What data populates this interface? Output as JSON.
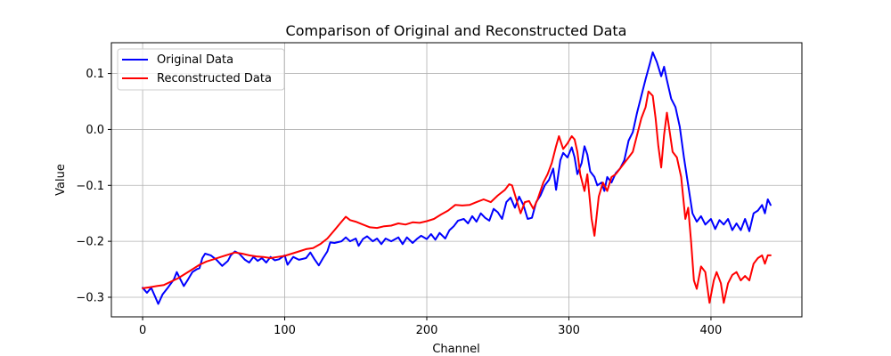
{
  "chart_data": {
    "type": "line",
    "title": "Comparison of Original and Reconstructed Data",
    "xlabel": "Channel",
    "ylabel": "Value",
    "xlim": [
      -22,
      464
    ],
    "ylim": [
      -0.335,
      0.155
    ],
    "xticks": [
      0,
      100,
      200,
      300,
      400
    ],
    "yticks": [
      -0.3,
      -0.2,
      -0.1,
      0.0,
      0.1
    ],
    "ytick_labels": [
      "−0.3",
      "−0.2",
      "−0.1",
      "0.0",
      "0.1"
    ],
    "grid": true,
    "legend_position": "top-left",
    "series": [
      {
        "name": "Original Data",
        "color": "#0000ff",
        "points": [
          [
            0,
            -0.283
          ],
          [
            3,
            -0.292
          ],
          [
            6,
            -0.283
          ],
          [
            9,
            -0.3
          ],
          [
            11,
            -0.312
          ],
          [
            14,
            -0.295
          ],
          [
            18,
            -0.282
          ],
          [
            22,
            -0.268
          ],
          [
            24,
            -0.255
          ],
          [
            26,
            -0.265
          ],
          [
            29,
            -0.28
          ],
          [
            32,
            -0.268
          ],
          [
            35,
            -0.255
          ],
          [
            38,
            -0.25
          ],
          [
            40,
            -0.248
          ],
          [
            42,
            -0.23
          ],
          [
            44,
            -0.222
          ],
          [
            48,
            -0.225
          ],
          [
            52,
            -0.233
          ],
          [
            56,
            -0.244
          ],
          [
            60,
            -0.235
          ],
          [
            62,
            -0.225
          ],
          [
            65,
            -0.218
          ],
          [
            68,
            -0.222
          ],
          [
            72,
            -0.233
          ],
          [
            75,
            -0.238
          ],
          [
            78,
            -0.228
          ],
          [
            81,
            -0.235
          ],
          [
            84,
            -0.23
          ],
          [
            87,
            -0.238
          ],
          [
            90,
            -0.228
          ],
          [
            93,
            -0.234
          ],
          [
            96,
            -0.232
          ],
          [
            100,
            -0.225
          ],
          [
            102,
            -0.242
          ],
          [
            106,
            -0.228
          ],
          [
            110,
            -0.233
          ],
          [
            115,
            -0.23
          ],
          [
            118,
            -0.22
          ],
          [
            121,
            -0.232
          ],
          [
            124,
            -0.243
          ],
          [
            127,
            -0.23
          ],
          [
            130,
            -0.218
          ],
          [
            132,
            -0.202
          ],
          [
            135,
            -0.203
          ],
          [
            140,
            -0.2
          ],
          [
            143,
            -0.193
          ],
          [
            146,
            -0.2
          ],
          [
            150,
            -0.195
          ],
          [
            152,
            -0.208
          ],
          [
            155,
            -0.196
          ],
          [
            158,
            -0.191
          ],
          [
            162,
            -0.2
          ],
          [
            165,
            -0.195
          ],
          [
            168,
            -0.205
          ],
          [
            171,
            -0.195
          ],
          [
            175,
            -0.2
          ],
          [
            180,
            -0.193
          ],
          [
            183,
            -0.205
          ],
          [
            186,
            -0.193
          ],
          [
            190,
            -0.203
          ],
          [
            193,
            -0.196
          ],
          [
            196,
            -0.19
          ],
          [
            200,
            -0.196
          ],
          [
            203,
            -0.187
          ],
          [
            206,
            -0.197
          ],
          [
            209,
            -0.185
          ],
          [
            213,
            -0.195
          ],
          [
            216,
            -0.18
          ],
          [
            219,
            -0.173
          ],
          [
            222,
            -0.163
          ],
          [
            226,
            -0.16
          ],
          [
            229,
            -0.168
          ],
          [
            232,
            -0.155
          ],
          [
            235,
            -0.165
          ],
          [
            238,
            -0.15
          ],
          [
            241,
            -0.158
          ],
          [
            244,
            -0.163
          ],
          [
            247,
            -0.142
          ],
          [
            250,
            -0.148
          ],
          [
            253,
            -0.16
          ],
          [
            256,
            -0.13
          ],
          [
            259,
            -0.122
          ],
          [
            262,
            -0.14
          ],
          [
            265,
            -0.12
          ],
          [
            268,
            -0.135
          ],
          [
            271,
            -0.16
          ],
          [
            274,
            -0.158
          ],
          [
            277,
            -0.13
          ],
          [
            280,
            -0.118
          ],
          [
            283,
            -0.1
          ],
          [
            286,
            -0.09
          ],
          [
            289,
            -0.07
          ],
          [
            291,
            -0.108
          ],
          [
            294,
            -0.055
          ],
          [
            296,
            -0.042
          ],
          [
            299,
            -0.05
          ],
          [
            302,
            -0.032
          ],
          [
            304,
            -0.05
          ],
          [
            306,
            -0.08
          ],
          [
            309,
            -0.06
          ],
          [
            311,
            -0.03
          ],
          [
            313,
            -0.045
          ],
          [
            315,
            -0.075
          ],
          [
            318,
            -0.085
          ],
          [
            320,
            -0.1
          ],
          [
            323,
            -0.095
          ],
          [
            325,
            -0.11
          ],
          [
            327,
            -0.085
          ],
          [
            330,
            -0.095
          ],
          [
            333,
            -0.078
          ],
          [
            336,
            -0.07
          ],
          [
            339,
            -0.055
          ],
          [
            342,
            -0.02
          ],
          [
            345,
            -0.005
          ],
          [
            348,
            0.03
          ],
          [
            351,
            0.06
          ],
          [
            354,
            0.09
          ],
          [
            357,
            0.118
          ],
          [
            359,
            0.138
          ],
          [
            362,
            0.12
          ],
          [
            365,
            0.095
          ],
          [
            367,
            0.112
          ],
          [
            369,
            0.088
          ],
          [
            372,
            0.055
          ],
          [
            375,
            0.04
          ],
          [
            378,
            0.005
          ],
          [
            381,
            -0.05
          ],
          [
            384,
            -0.1
          ],
          [
            387,
            -0.15
          ],
          [
            390,
            -0.165
          ],
          [
            393,
            -0.155
          ],
          [
            396,
            -0.17
          ],
          [
            400,
            -0.16
          ],
          [
            403,
            -0.178
          ],
          [
            406,
            -0.162
          ],
          [
            409,
            -0.17
          ],
          [
            412,
            -0.16
          ],
          [
            415,
            -0.18
          ],
          [
            418,
            -0.168
          ],
          [
            421,
            -0.18
          ],
          [
            424,
            -0.16
          ],
          [
            427,
            -0.182
          ],
          [
            430,
            -0.15
          ],
          [
            433,
            -0.145
          ],
          [
            436,
            -0.135
          ],
          [
            438,
            -0.15
          ],
          [
            440,
            -0.125
          ],
          [
            442,
            -0.135
          ]
        ]
      },
      {
        "name": "Reconstructed Data",
        "color": "#ff0000",
        "points": [
          [
            0,
            -0.284
          ],
          [
            5,
            -0.282
          ],
          [
            10,
            -0.28
          ],
          [
            15,
            -0.278
          ],
          [
            20,
            -0.272
          ],
          [
            25,
            -0.266
          ],
          [
            30,
            -0.258
          ],
          [
            35,
            -0.25
          ],
          [
            40,
            -0.242
          ],
          [
            45,
            -0.236
          ],
          [
            50,
            -0.232
          ],
          [
            55,
            -0.228
          ],
          [
            60,
            -0.224
          ],
          [
            65,
            -0.22
          ],
          [
            70,
            -0.222
          ],
          [
            75,
            -0.225
          ],
          [
            80,
            -0.227
          ],
          [
            85,
            -0.228
          ],
          [
            90,
            -0.23
          ],
          [
            95,
            -0.228
          ],
          [
            100,
            -0.226
          ],
          [
            105,
            -0.222
          ],
          [
            110,
            -0.218
          ],
          [
            115,
            -0.214
          ],
          [
            120,
            -0.212
          ],
          [
            125,
            -0.205
          ],
          [
            130,
            -0.195
          ],
          [
            135,
            -0.18
          ],
          [
            140,
            -0.165
          ],
          [
            143,
            -0.156
          ],
          [
            146,
            -0.162
          ],
          [
            150,
            -0.165
          ],
          [
            155,
            -0.17
          ],
          [
            160,
            -0.175
          ],
          [
            165,
            -0.176
          ],
          [
            170,
            -0.173
          ],
          [
            175,
            -0.172
          ],
          [
            180,
            -0.168
          ],
          [
            185,
            -0.17
          ],
          [
            190,
            -0.166
          ],
          [
            195,
            -0.167
          ],
          [
            200,
            -0.164
          ],
          [
            205,
            -0.16
          ],
          [
            210,
            -0.152
          ],
          [
            215,
            -0.145
          ],
          [
            220,
            -0.135
          ],
          [
            225,
            -0.136
          ],
          [
            230,
            -0.135
          ],
          [
            235,
            -0.13
          ],
          [
            240,
            -0.125
          ],
          [
            245,
            -0.13
          ],
          [
            250,
            -0.118
          ],
          [
            255,
            -0.108
          ],
          [
            258,
            -0.098
          ],
          [
            260,
            -0.1
          ],
          [
            263,
            -0.125
          ],
          [
            266,
            -0.15
          ],
          [
            269,
            -0.13
          ],
          [
            272,
            -0.128
          ],
          [
            275,
            -0.142
          ],
          [
            278,
            -0.125
          ],
          [
            282,
            -0.095
          ],
          [
            285,
            -0.08
          ],
          [
            288,
            -0.06
          ],
          [
            291,
            -0.03
          ],
          [
            293,
            -0.012
          ],
          [
            296,
            -0.035
          ],
          [
            299,
            -0.025
          ],
          [
            302,
            -0.012
          ],
          [
            304,
            -0.018
          ],
          [
            306,
            -0.04
          ],
          [
            308,
            -0.08
          ],
          [
            311,
            -0.11
          ],
          [
            313,
            -0.08
          ],
          [
            316,
            -0.16
          ],
          [
            318,
            -0.19
          ],
          [
            321,
            -0.12
          ],
          [
            324,
            -0.095
          ],
          [
            327,
            -0.11
          ],
          [
            330,
            -0.085
          ],
          [
            333,
            -0.08
          ],
          [
            336,
            -0.07
          ],
          [
            339,
            -0.06
          ],
          [
            342,
            -0.05
          ],
          [
            345,
            -0.04
          ],
          [
            348,
            -0.01
          ],
          [
            351,
            0.02
          ],
          [
            354,
            0.04
          ],
          [
            356,
            0.068
          ],
          [
            359,
            0.06
          ],
          [
            361,
            0.02
          ],
          [
            363,
            -0.03
          ],
          [
            365,
            -0.068
          ],
          [
            367,
            -0.01
          ],
          [
            369,
            0.03
          ],
          [
            371,
            -0.005
          ],
          [
            373,
            -0.04
          ],
          [
            376,
            -0.05
          ],
          [
            379,
            -0.085
          ],
          [
            382,
            -0.16
          ],
          [
            384,
            -0.14
          ],
          [
            386,
            -0.2
          ],
          [
            388,
            -0.27
          ],
          [
            390,
            -0.285
          ],
          [
            393,
            -0.245
          ],
          [
            396,
            -0.255
          ],
          [
            399,
            -0.31
          ],
          [
            402,
            -0.27
          ],
          [
            404,
            -0.255
          ],
          [
            407,
            -0.275
          ],
          [
            409,
            -0.31
          ],
          [
            412,
            -0.275
          ],
          [
            415,
            -0.26
          ],
          [
            418,
            -0.255
          ],
          [
            421,
            -0.27
          ],
          [
            424,
            -0.262
          ],
          [
            427,
            -0.27
          ],
          [
            430,
            -0.24
          ],
          [
            433,
            -0.23
          ],
          [
            436,
            -0.225
          ],
          [
            438,
            -0.24
          ],
          [
            440,
            -0.225
          ],
          [
            442,
            -0.225
          ]
        ]
      }
    ]
  }
}
